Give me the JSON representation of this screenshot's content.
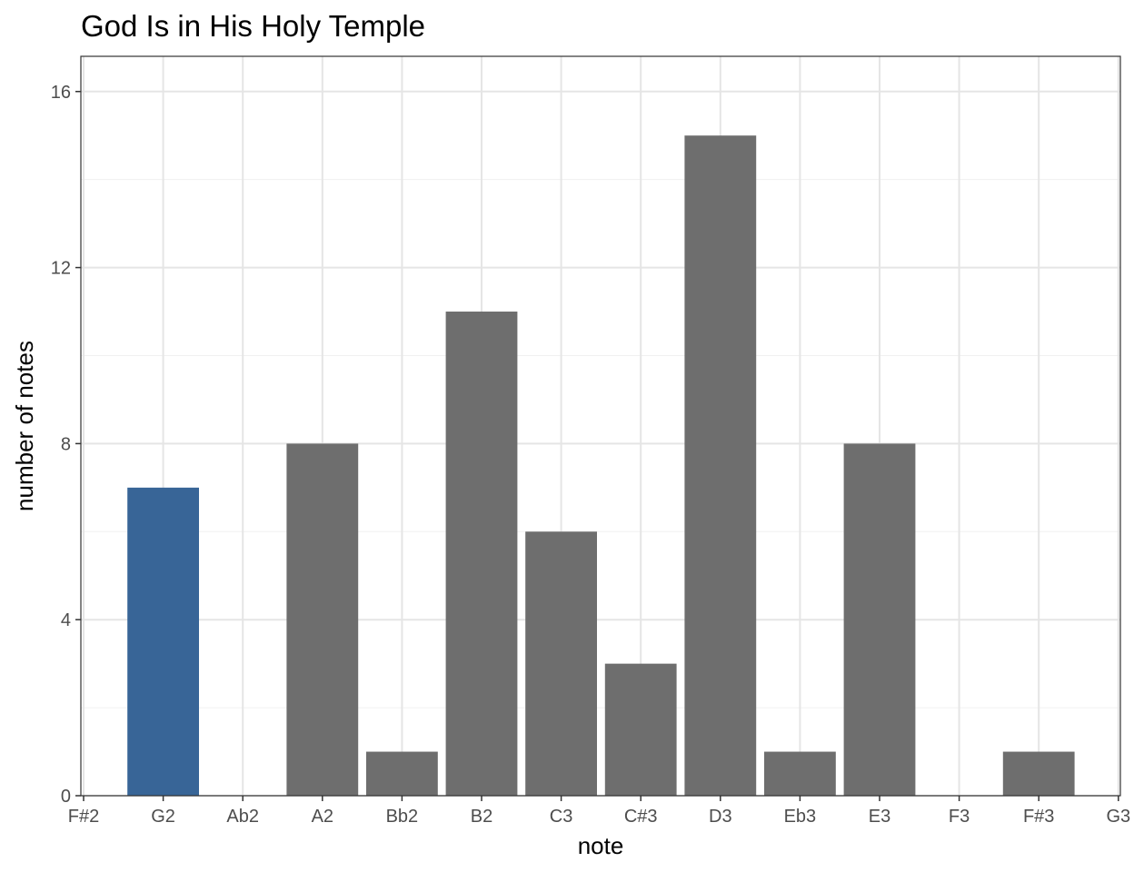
{
  "chart_data": {
    "type": "bar",
    "title": "God Is in His Holy Temple",
    "xlabel": "note",
    "ylabel": "number of notes",
    "categories": [
      "F#2",
      "G2",
      "Ab2",
      "A2",
      "Bb2",
      "B2",
      "C3",
      "C#3",
      "D3",
      "Eb3",
      "E3",
      "F3",
      "F#3",
      "G3"
    ],
    "values": [
      0,
      7,
      0,
      8,
      1,
      11,
      6,
      3,
      15,
      1,
      8,
      0,
      1,
      0
    ],
    "highlight_category": "G2",
    "colors": {
      "default_bar": "#6e6e6e",
      "highlight_bar": "#386597"
    },
    "y_ticks": [
      0,
      4,
      8,
      12,
      16
    ],
    "ylim": [
      0,
      16.8
    ],
    "grid": true
  }
}
